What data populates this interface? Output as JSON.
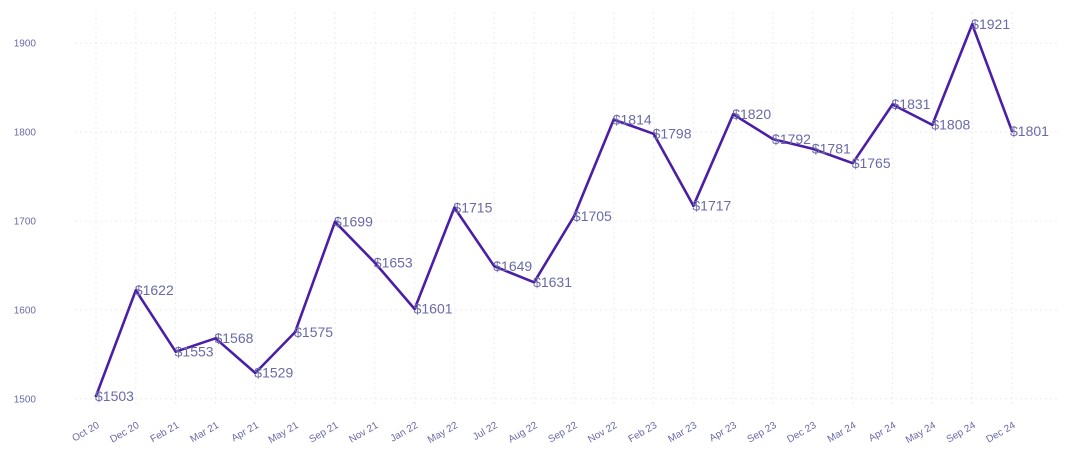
{
  "colors": {
    "line": "#4a1ea6",
    "label": "#6a6aa8",
    "grid": "#ececf2"
  },
  "chart_data": {
    "type": "line",
    "title": "",
    "xlabel": "",
    "ylabel": "",
    "grid": true,
    "legend": "none",
    "ylim": [
      1493,
      1935
    ],
    "y_ticks": [
      1500,
      1600,
      1700,
      1800,
      1900
    ],
    "value_prefix": "$",
    "categories": [
      "Oct 20",
      "Dec 20",
      "Feb 21",
      "Mar 21",
      "Apr 21",
      "May 21",
      "Sep 21",
      "Nov 21",
      "Jan 22",
      "May 22",
      "Jul 22",
      "Aug 22",
      "Sep 22",
      "Nov 22",
      "Feb 23",
      "Mar 23",
      "Apr 23",
      "Sep 23",
      "Dec 23",
      "Mar 24",
      "Apr 24",
      "May 24",
      "Sep 24",
      "Dec 24"
    ],
    "series": [
      {
        "values": [
          1503,
          1622,
          1553,
          1568,
          1529,
          1575,
          1699,
          1653,
          1601,
          1715,
          1649,
          1631,
          1705,
          1814,
          1798,
          1717,
          1820,
          1792,
          1781,
          1765,
          1831,
          1808,
          1921,
          1801
        ]
      }
    ]
  }
}
